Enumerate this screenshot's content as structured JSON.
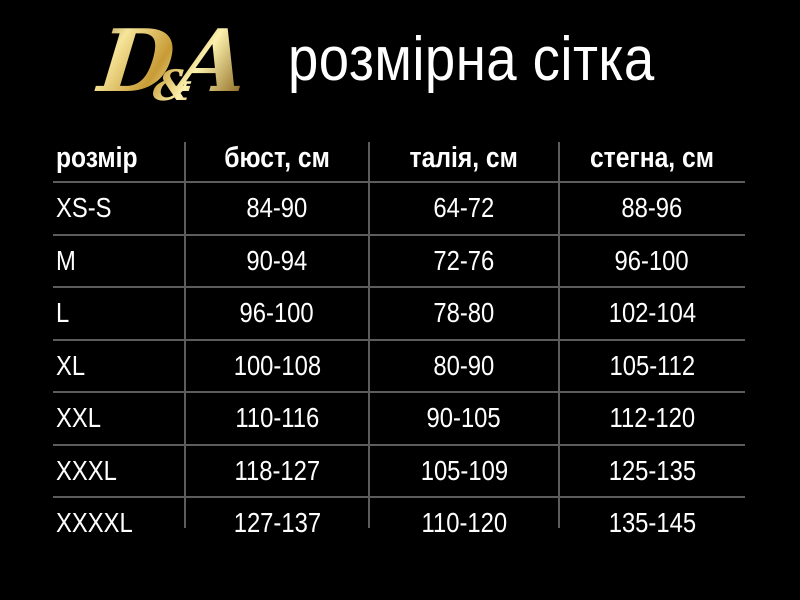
{
  "brand": {
    "logo_d": "D",
    "logo_amp": "&",
    "logo_a": "A",
    "title": "розмірна сітка"
  },
  "chart_data": {
    "type": "table",
    "title": "розмірна сітка",
    "columns": [
      "розмір",
      "бюст, см",
      "талія, см",
      "стегна, см"
    ],
    "rows": [
      [
        "XS-S",
        "84-90",
        "64-72",
        "88-96"
      ],
      [
        "M",
        "90-94",
        "72-76",
        "96-100"
      ],
      [
        "L",
        "96-100",
        "78-80",
        "102-104"
      ],
      [
        "XL",
        "100-108",
        "80-90",
        "105-112"
      ],
      [
        "XXL",
        "110-116",
        "90-105",
        "112-120"
      ],
      [
        "XXXL",
        "118-127",
        "105-109",
        "125-135"
      ],
      [
        "XXXXL",
        "127-137",
        "110-120",
        "135-145"
      ]
    ],
    "layout_hints": {
      "background": "#000000",
      "text_color": "#ffffff",
      "grid_line_color": "#5c5c5c",
      "header_bold": true,
      "first_column_align": "left",
      "value_columns_align": "center"
    }
  },
  "colors": {
    "background": "#000000",
    "text": "#ffffff",
    "line": "#5c5c5c",
    "gold": "#d7b45c"
  }
}
